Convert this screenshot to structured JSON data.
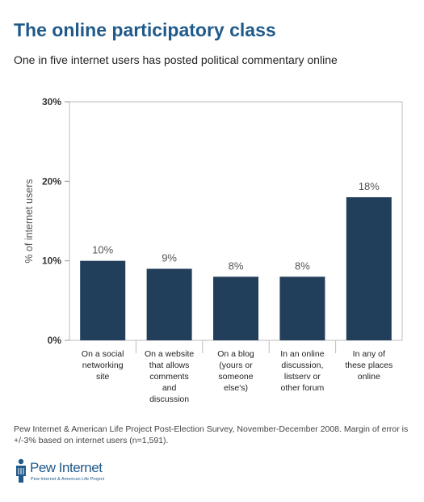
{
  "title": "The online participatory class",
  "subtitle": "One in five internet users has posted political commentary online",
  "source": "Pew Internet & American Life Project Post-Election Survey, November-December 2008. Margin of error is +/-3% based on internet users (n=1,591).",
  "logo": {
    "name": "Pew Internet",
    "tagline": "Pew Internet & American Life Project",
    "color": "#1f5a8a"
  },
  "chart_data": {
    "type": "bar",
    "categories": [
      [
        "On a social",
        "networking",
        "site"
      ],
      [
        "On a website",
        "that allows",
        "comments",
        "and",
        "discussion"
      ],
      [
        "On a blog",
        "(yours or",
        "someone",
        "else's)"
      ],
      [
        "In an online",
        "discussion,",
        "listserv or",
        "other forum"
      ],
      [
        "In any of",
        "these places",
        "online"
      ]
    ],
    "values": [
      10,
      9,
      8,
      8,
      18
    ],
    "data_labels": [
      "10%",
      "9%",
      "8%",
      "8%",
      "18%"
    ],
    "ylabel": "% of internet users",
    "ylim": [
      0,
      30
    ],
    "yticks": [
      0,
      10,
      20,
      30
    ],
    "ytick_labels": [
      "0%",
      "10%",
      "20%",
      "30%"
    ],
    "grid": false,
    "bar_color": "#213f5b"
  }
}
